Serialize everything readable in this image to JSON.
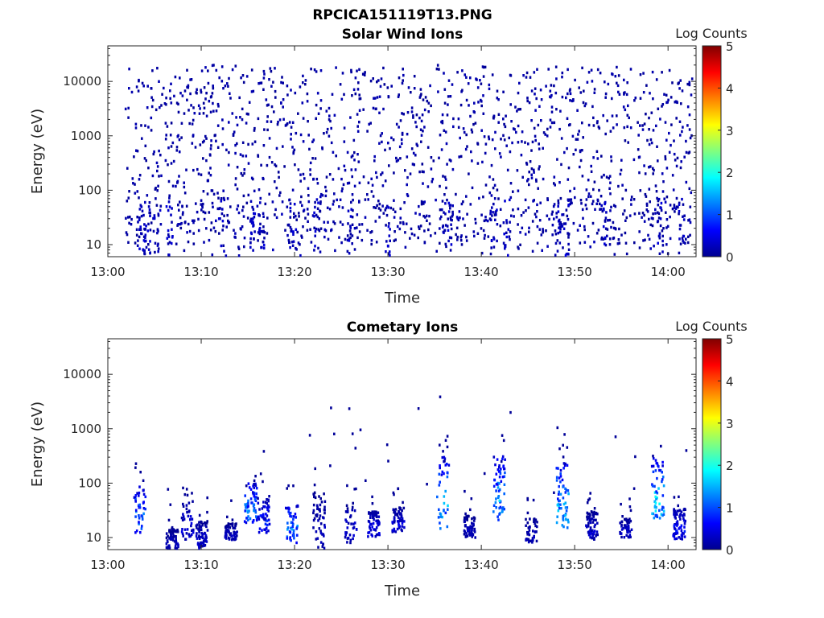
{
  "figure_title": "RPCICA151119T13.PNG",
  "chart_data": [
    {
      "type": "heatmap",
      "title": "Solar Wind Ions",
      "xlabel": "Time",
      "ylabel": "Energy (eV)",
      "xlim_minutes": [
        0,
        63
      ],
      "ylim": [
        6,
        45000
      ],
      "yscale": "log",
      "xticks": [
        {
          "label": "13:00",
          "minute": 0
        },
        {
          "label": "13:10",
          "minute": 10
        },
        {
          "label": "13:20",
          "minute": 20
        },
        {
          "label": "13:30",
          "minute": 30
        },
        {
          "label": "13:40",
          "minute": 40
        },
        {
          "label": "13:50",
          "minute": 50
        },
        {
          "label": "14:00",
          "minute": 60
        }
      ],
      "yticks": [
        {
          "label": "10",
          "value": 10
        },
        {
          "label": "100",
          "value": 100
        },
        {
          "label": "1000",
          "value": 1000
        },
        {
          "label": "10000",
          "value": 10000
        }
      ],
      "colorbar": {
        "label": "Log Counts",
        "min": 0,
        "max": 5,
        "ticks": [
          "0",
          "1",
          "2",
          "3",
          "4",
          "5"
        ]
      },
      "data_time_range_minutes": [
        1.8,
        62.5
      ],
      "pattern": "sparse single counts (log counts ~0.1) scattered across 10-20000 eV, with denser low-energy streaks below ~80 eV",
      "low_energy_streaks_minutes": [
        3.6,
        4.1,
        5.2,
        6.5,
        12.1,
        15.5,
        16.3,
        19.7,
        22.3,
        25.8,
        30.0,
        35.8,
        36.6,
        41.2,
        42.6,
        48.3,
        49.1,
        53.0,
        59.1,
        61.4
      ]
    },
    {
      "type": "heatmap",
      "title": "Cometary Ions",
      "xlabel": "Time",
      "ylabel": "Energy (eV)",
      "xlim_minutes": [
        0,
        63
      ],
      "ylim": [
        6,
        45000
      ],
      "yscale": "log",
      "xticks": [
        {
          "label": "13:00",
          "minute": 0
        },
        {
          "label": "13:10",
          "minute": 10
        },
        {
          "label": "13:20",
          "minute": 20
        },
        {
          "label": "13:30",
          "minute": 30
        },
        {
          "label": "13:40",
          "minute": 40
        },
        {
          "label": "13:50",
          "minute": 50
        },
        {
          "label": "14:00",
          "minute": 60
        }
      ],
      "yticks": [
        {
          "label": "10",
          "value": 10
        },
        {
          "label": "100",
          "value": 100
        },
        {
          "label": "1000",
          "value": 1000
        },
        {
          "label": "10000",
          "value": 10000
        }
      ],
      "colorbar": {
        "label": "Log Counts",
        "min": 0,
        "max": 5,
        "ticks": [
          "0",
          "1",
          "2",
          "3",
          "4",
          "5"
        ]
      },
      "bursts": [
        {
          "minute": 3.3,
          "emin": 12,
          "emax": 90,
          "peak": 1.6
        },
        {
          "minute": 6.8,
          "emin": 6,
          "emax": 14,
          "peak": 0.4
        },
        {
          "minute": 8.4,
          "emin": 9,
          "emax": 50,
          "peak": 0.6
        },
        {
          "minute": 10.0,
          "emin": 6,
          "emax": 20,
          "peak": 0.5
        },
        {
          "minute": 13.1,
          "emin": 9,
          "emax": 18,
          "peak": 0.4
        },
        {
          "minute": 15.2,
          "emin": 18,
          "emax": 110,
          "peak": 1.6
        },
        {
          "minute": 16.6,
          "emin": 12,
          "emax": 60,
          "peak": 0.9
        },
        {
          "minute": 19.6,
          "emin": 8,
          "emax": 40,
          "peak": 1.7
        },
        {
          "minute": 22.5,
          "emin": 6,
          "emax": 70,
          "peak": 0.4
        },
        {
          "minute": 25.9,
          "emin": 8,
          "emax": 45,
          "peak": 0.5
        },
        {
          "minute": 28.4,
          "emin": 10,
          "emax": 30,
          "peak": 0.7
        },
        {
          "minute": 31.0,
          "emin": 12,
          "emax": 35,
          "peak": 0.6
        },
        {
          "minute": 35.8,
          "emin": 14,
          "emax": 300,
          "peak": 2.0
        },
        {
          "minute": 38.7,
          "emin": 10,
          "emax": 25,
          "peak": 0.4
        },
        {
          "minute": 41.8,
          "emin": 20,
          "emax": 350,
          "peak": 1.8
        },
        {
          "minute": 45.3,
          "emin": 8,
          "emax": 22,
          "peak": 0.4
        },
        {
          "minute": 48.6,
          "emin": 15,
          "emax": 280,
          "peak": 1.9
        },
        {
          "minute": 51.7,
          "emin": 9,
          "emax": 30,
          "peak": 0.5
        },
        {
          "minute": 55.4,
          "emin": 10,
          "emax": 22,
          "peak": 0.5
        },
        {
          "minute": 58.8,
          "emin": 20,
          "emax": 300,
          "peak": 2.1
        },
        {
          "minute": 61.1,
          "emin": 9,
          "emax": 35,
          "peak": 0.9
        }
      ]
    }
  ]
}
